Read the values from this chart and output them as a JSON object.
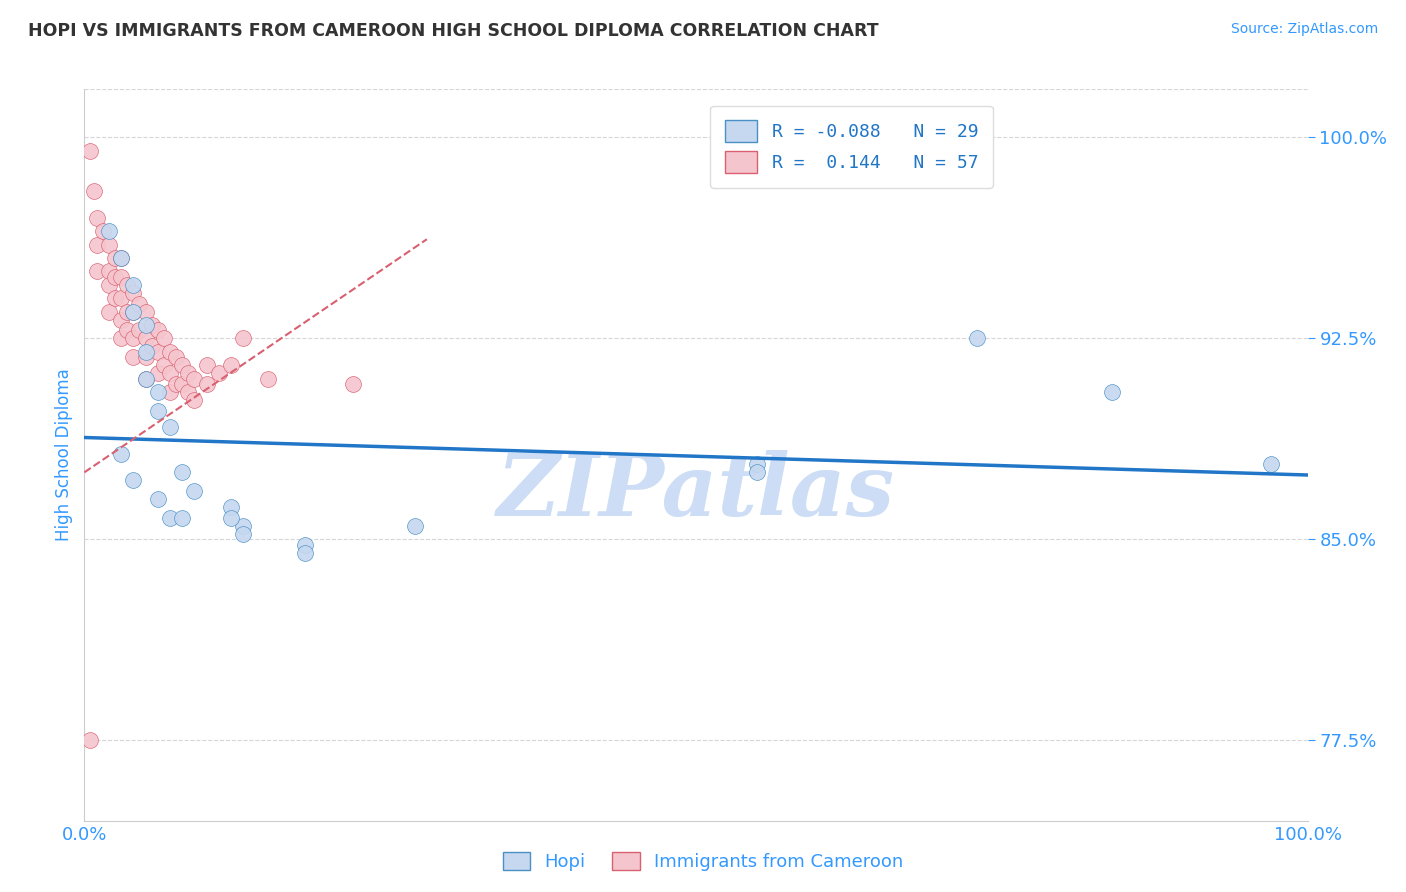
{
  "title": "HOPI VS IMMIGRANTS FROM CAMEROON HIGH SCHOOL DIPLOMA CORRELATION CHART",
  "source": "Source: ZipAtlas.com",
  "xlabel_hopi": "Hopi",
  "xlabel_cameroon": "Immigrants from Cameroon",
  "ylabel": "High School Diploma",
  "watermark": "ZIPatlas",
  "hopi_R": -0.088,
  "hopi_N": 29,
  "cameroon_R": 0.144,
  "cameroon_N": 57,
  "xlim": [
    0.0,
    1.0
  ],
  "ylim": [
    0.745,
    1.018
  ],
  "yticks": [
    0.775,
    0.85,
    0.925,
    1.0
  ],
  "ytick_labels": [
    "77.5%",
    "85.0%",
    "92.5%",
    "100.0%"
  ],
  "xtick_labels": [
    "0.0%",
    "100.0%"
  ],
  "xticks": [
    0.0,
    1.0
  ],
  "hopi_color": "#c5d8f0",
  "hopi_edge_color": "#4a90c4",
  "hopi_line_color": "#2176c7",
  "cameroon_color": "#f5c5ce",
  "cameroon_edge_color": "#d96070",
  "cameroon_line_color": "#d96070",
  "title_color": "#333333",
  "axis_label_color": "#3399ff",
  "tick_color": "#3399ff",
  "grid_color": "#cccccc",
  "background_color": "#ffffff",
  "watermark_color": "#ccddf5",
  "hopi_scatter_x": [
    0.02,
    0.03,
    0.04,
    0.04,
    0.05,
    0.05,
    0.05,
    0.06,
    0.06,
    0.07,
    0.08,
    0.09,
    0.12,
    0.13,
    0.18,
    0.27,
    0.55,
    0.73,
    0.84,
    0.97,
    0.03,
    0.04,
    0.06,
    0.07,
    0.08,
    0.12,
    0.13,
    0.18,
    0.55
  ],
  "hopi_scatter_y": [
    0.965,
    0.955,
    0.945,
    0.935,
    0.93,
    0.92,
    0.91,
    0.905,
    0.898,
    0.892,
    0.875,
    0.868,
    0.862,
    0.855,
    0.848,
    0.855,
    0.878,
    0.925,
    0.905,
    0.878,
    0.882,
    0.872,
    0.865,
    0.858,
    0.858,
    0.858,
    0.852,
    0.845,
    0.875
  ],
  "cameroon_scatter_x": [
    0.005,
    0.008,
    0.01,
    0.01,
    0.01,
    0.015,
    0.02,
    0.02,
    0.02,
    0.02,
    0.025,
    0.025,
    0.025,
    0.03,
    0.03,
    0.03,
    0.03,
    0.03,
    0.035,
    0.035,
    0.035,
    0.04,
    0.04,
    0.04,
    0.04,
    0.045,
    0.045,
    0.05,
    0.05,
    0.05,
    0.05,
    0.055,
    0.055,
    0.06,
    0.06,
    0.06,
    0.065,
    0.065,
    0.07,
    0.07,
    0.07,
    0.075,
    0.075,
    0.08,
    0.08,
    0.085,
    0.085,
    0.09,
    0.09,
    0.1,
    0.1,
    0.11,
    0.12,
    0.13,
    0.15,
    0.22,
    0.005
  ],
  "cameroon_scatter_y": [
    0.995,
    0.98,
    0.97,
    0.96,
    0.95,
    0.965,
    0.96,
    0.95,
    0.945,
    0.935,
    0.955,
    0.948,
    0.94,
    0.955,
    0.948,
    0.94,
    0.932,
    0.925,
    0.945,
    0.935,
    0.928,
    0.942,
    0.935,
    0.925,
    0.918,
    0.938,
    0.928,
    0.935,
    0.925,
    0.918,
    0.91,
    0.93,
    0.922,
    0.928,
    0.92,
    0.912,
    0.925,
    0.915,
    0.92,
    0.912,
    0.905,
    0.918,
    0.908,
    0.915,
    0.908,
    0.912,
    0.905,
    0.91,
    0.902,
    0.915,
    0.908,
    0.912,
    0.915,
    0.925,
    0.91,
    0.908,
    0.775
  ],
  "hopi_line_x0": 0.0,
  "hopi_line_x1": 1.0,
  "hopi_line_y0": 0.888,
  "hopi_line_y1": 0.874,
  "cam_line_x0": 0.0,
  "cam_line_x1": 0.28,
  "cam_line_y0": 0.875,
  "cam_line_y1": 0.962
}
